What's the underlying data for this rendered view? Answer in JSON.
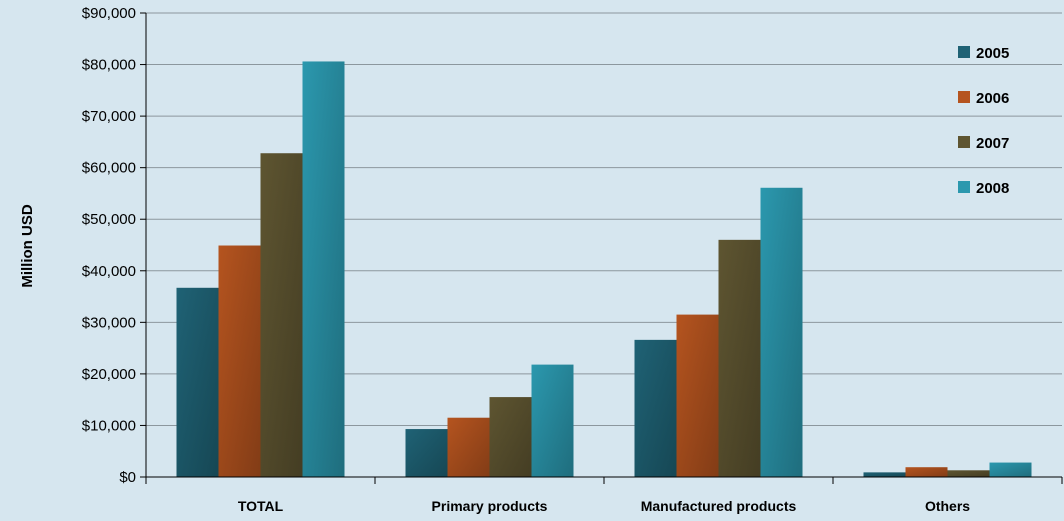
{
  "chart_data": {
    "type": "bar",
    "title": "",
    "xlabel": "",
    "ylabel": "Million USD",
    "ylim": [
      0,
      90000
    ],
    "yticks": [
      0,
      10000,
      20000,
      30000,
      40000,
      50000,
      60000,
      70000,
      80000,
      90000
    ],
    "ytick_labels": [
      "$0",
      "$10,000",
      "$20,000",
      "$30,000",
      "$40,000",
      "$50,000",
      "$60,000",
      "$70,000",
      "$80,000",
      "$90,000"
    ],
    "categories": [
      "TOTAL",
      "Primary products",
      "Manufactured products",
      "Others"
    ],
    "series": [
      {
        "name": "2005",
        "color": "#1f6275",
        "values": [
          36700,
          9300,
          26600,
          900
        ]
      },
      {
        "name": "2006",
        "color": "#b5541f",
        "values": [
          44900,
          11500,
          31500,
          1900
        ]
      },
      {
        "name": "2007",
        "color": "#5e5531",
        "values": [
          62800,
          15500,
          46000,
          1300
        ]
      },
      {
        "name": "2008",
        "color": "#2b98ae",
        "values": [
          80600,
          21800,
          56100,
          2800
        ]
      }
    ],
    "grid": true,
    "legend_position": "top-right"
  }
}
